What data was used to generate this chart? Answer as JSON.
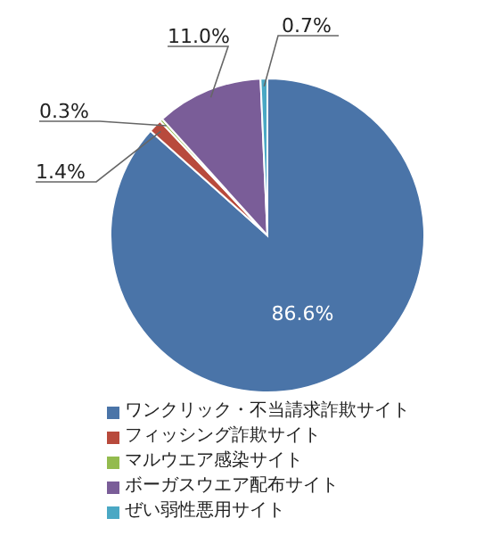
{
  "chart_data": {
    "type": "pie",
    "categories": [
      "ワンクリック・不当請求詐欺サイト",
      "フィッシング詐欺サイト",
      "マルウエア感染サイト",
      "ボーガスウエア配布サイト",
      "ぜい弱性悪用サイト"
    ],
    "values": [
      86.6,
      1.4,
      0.3,
      11.0,
      0.7
    ],
    "value_labels": [
      "86.6%",
      "1.4%",
      "0.3%",
      "11.0%",
      "0.7%"
    ],
    "colors": [
      "#4a74a8",
      "#b84a3c",
      "#93bb4e",
      "#7a5d98",
      "#4aa8c4"
    ],
    "legend": "bottom"
  }
}
